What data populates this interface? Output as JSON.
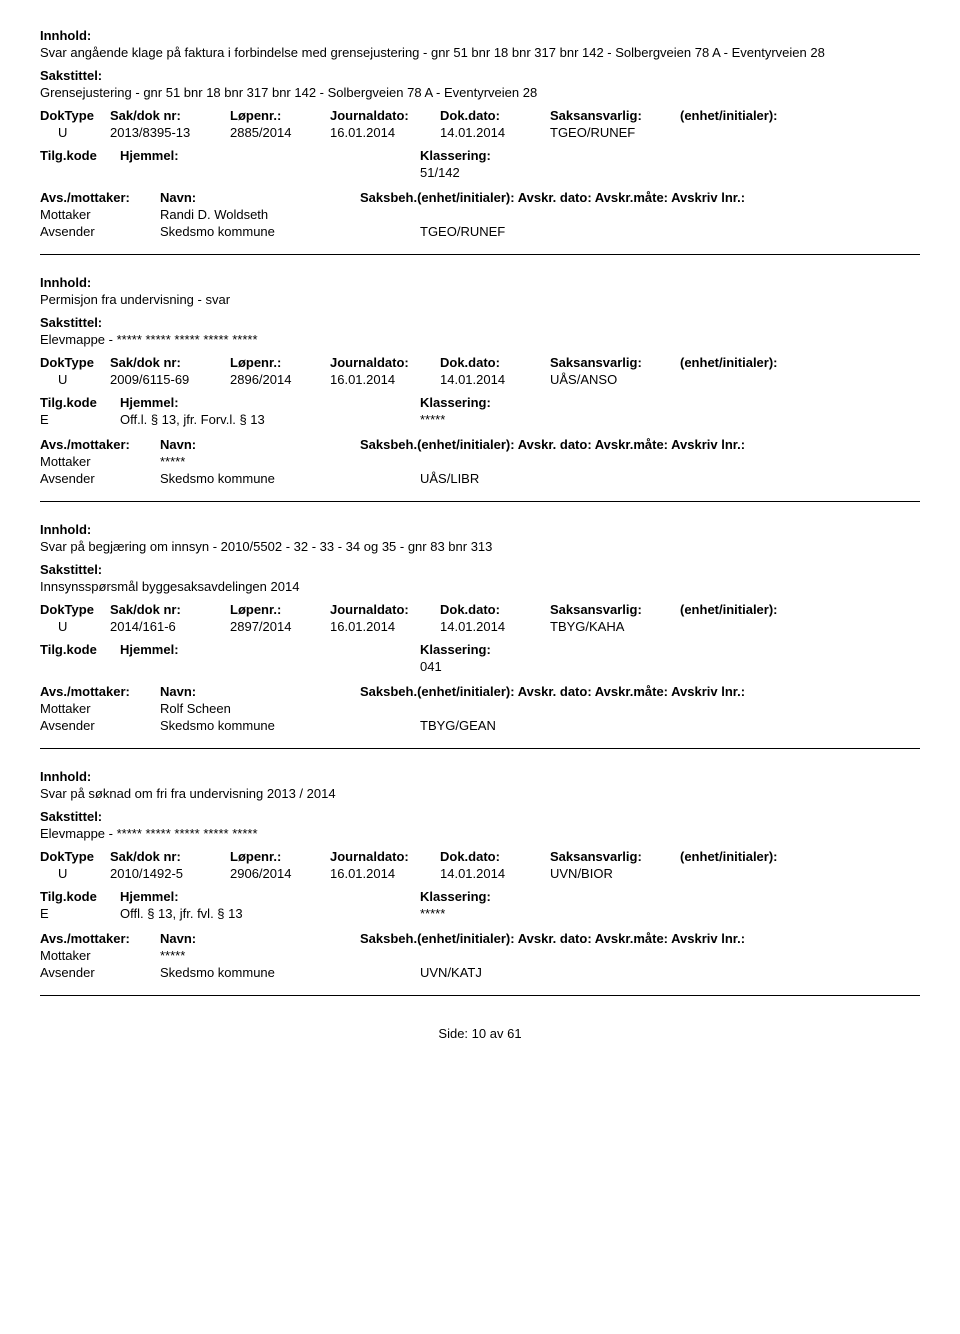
{
  "labels": {
    "innhold": "Innhold:",
    "sakstittel": "Sakstittel:",
    "doktype": "DokType",
    "sakdok": "Sak/dok nr:",
    "lopenr": "Løpenr.:",
    "journaldato": "Journaldato:",
    "dokdato": "Dok.dato:",
    "saksansvarlig": "Saksansvarlig:",
    "enhet": "(enhet/initialer):",
    "tilgkode": "Tilg.kode",
    "hjemmel": "Hjemmel:",
    "klassering": "Klassering:",
    "avsmottaker": "Avs./mottaker:",
    "navn": "Navn:",
    "saksbeh": "Saksbeh.(enhet/initialer):",
    "avskrdato": "Avskr. dato:",
    "avskrmate": "Avskr.måte:",
    "avskrivlnr": "Avskriv lnr.:",
    "mottaker": "Mottaker",
    "avsender": "Avsender"
  },
  "records": [
    {
      "innhold": "Svar angående klage på faktura i forbindelse med grensejustering - gnr 51 bnr 18 bnr 317 bnr 142 - Solbergveien 78 A - Eventyrveien 28",
      "sakstittel": "Grensejustering - gnr 51 bnr 18 bnr 317 bnr 142 - Solbergveien 78 A - Eventyrveien 28",
      "doktype": "U",
      "sakdok": "2013/8395-13",
      "lopenr": "2885/2014",
      "journaldato": "16.01.2014",
      "dokdato": "14.01.2014",
      "saksansvarlig": "TGEO/RUNEF",
      "tilgkode": "",
      "hjemmel": "",
      "klassering": "51/142",
      "parties": [
        {
          "role": "Mottaker",
          "name": "Randi D. Woldseth",
          "code": ""
        },
        {
          "role": "Avsender",
          "name": "Skedsmo kommune",
          "code": "TGEO/RUNEF"
        }
      ]
    },
    {
      "innhold": "Permisjon fra undervisning - svar",
      "sakstittel": "Elevmappe - ***** ***** ***** ***** *****",
      "doktype": "U",
      "sakdok": "2009/6115-69",
      "lopenr": "2896/2014",
      "journaldato": "16.01.2014",
      "dokdato": "14.01.2014",
      "saksansvarlig": "UÅS/ANSO",
      "tilgkode": "E",
      "hjemmel": "Off.l. § 13, jfr. Forv.l. § 13",
      "klassering": "*****",
      "parties": [
        {
          "role": "Mottaker",
          "name": "*****",
          "code": ""
        },
        {
          "role": "Avsender",
          "name": "Skedsmo kommune",
          "code": "UÅS/LIBR"
        }
      ]
    },
    {
      "innhold": "Svar på begjæring om innsyn - 2010/5502 - 32 - 33 - 34 og 35 - gnr 83 bnr 313",
      "sakstittel": "Innsynsspørsmål byggesaksavdelingen 2014",
      "doktype": "U",
      "sakdok": "2014/161-6",
      "lopenr": "2897/2014",
      "journaldato": "16.01.2014",
      "dokdato": "14.01.2014",
      "saksansvarlig": "TBYG/KAHA",
      "tilgkode": "",
      "hjemmel": "",
      "klassering": "041",
      "parties": [
        {
          "role": "Mottaker",
          "name": "Rolf Scheen",
          "code": ""
        },
        {
          "role": "Avsender",
          "name": "Skedsmo kommune",
          "code": "TBYG/GEAN"
        }
      ]
    },
    {
      "innhold": "Svar på søknad om fri fra undervisning 2013 / 2014",
      "sakstittel": "Elevmappe - ***** ***** ***** ***** *****",
      "doktype": "U",
      "sakdok": "2010/1492-5",
      "lopenr": "2906/2014",
      "journaldato": "16.01.2014",
      "dokdato": "14.01.2014",
      "saksansvarlig": "UVN/BIOR",
      "tilgkode": "E",
      "hjemmel": "Offl. § 13, jfr. fvl. § 13",
      "klassering": "*****",
      "parties": [
        {
          "role": "Mottaker",
          "name": "*****",
          "code": ""
        },
        {
          "role": "Avsender",
          "name": "Skedsmo kommune",
          "code": "UVN/KATJ"
        }
      ]
    }
  ],
  "footer": {
    "side": "Side:",
    "page": "10",
    "av": "av",
    "total": "61"
  }
}
